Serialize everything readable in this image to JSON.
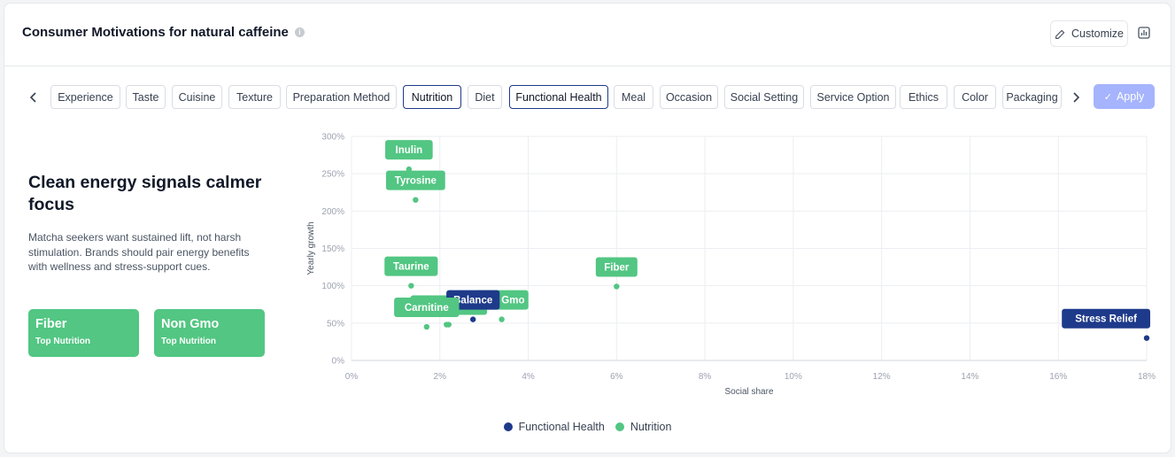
{
  "header": {
    "title": "Consumer Motivations for natural caffeine",
    "customize_label": "Customize"
  },
  "filters": {
    "chips": [
      "Experience",
      "Taste",
      "Cuisine",
      "Texture",
      "Preparation Method",
      "Nutrition",
      "Diet",
      "Functional Health",
      "Meal",
      "Occasion",
      "Social Setting",
      "Service Option",
      "Ethics",
      "Color",
      "Packaging"
    ],
    "active": [
      "Nutrition",
      "Functional Health"
    ],
    "apply_label": "Apply"
  },
  "insight": {
    "headline": "Clean energy signals calmer focus",
    "description": "Matcha seekers want sustained lift, not harsh stimulation. Brands should pair energy benefits with wellness and stress-support cues.",
    "stats": [
      {
        "value": "Fiber",
        "label": "Top Nutrition"
      },
      {
        "value": "Non Gmo",
        "label": "Top Nutrition"
      }
    ]
  },
  "colors": {
    "functional_health": "#1e3a8a",
    "nutrition": "#52c682",
    "apply": "#a5b4fc"
  },
  "chart_data": {
    "type": "scatter",
    "xlabel": "Social share",
    "ylabel": "Yearly growth",
    "xlim": [
      0,
      18
    ],
    "ylim": [
      0,
      300
    ],
    "x_ticks": [
      0,
      2,
      4,
      6,
      8,
      10,
      12,
      14,
      16,
      18
    ],
    "y_ticks": [
      0,
      50,
      100,
      150,
      200,
      250,
      300
    ],
    "x_tick_labels": [
      "0%",
      "2%",
      "4%",
      "6%",
      "8%",
      "10%",
      "12%",
      "14%",
      "16%",
      "18%"
    ],
    "y_tick_labels": [
      "0%",
      "50%",
      "100%",
      "150%",
      "200%",
      "250%",
      "300%"
    ],
    "grid": true,
    "legend": "bottom-center",
    "series": [
      {
        "name": "Functional Health",
        "color": "#1e3a8a",
        "points": [
          {
            "label": "Balance",
            "x": 2.75,
            "y": 55
          },
          {
            "label": "Stress Relief",
            "x": 18.0,
            "y": 30
          }
        ]
      },
      {
        "name": "Nutrition",
        "color": "#52c682",
        "points": [
          {
            "label": "Inulin",
            "x": 1.3,
            "y": 256
          },
          {
            "label": "Tyrosine",
            "x": 1.45,
            "y": 215
          },
          {
            "label": "Taurine",
            "x": 1.35,
            "y": 100
          },
          {
            "label": "Fiber",
            "x": 6.0,
            "y": 99
          },
          {
            "label": "Healthy Fat",
            "x": 2.2,
            "y": 48
          },
          {
            "label": "Carnitine",
            "x": 1.7,
            "y": 45
          },
          {
            "label": "Magnesium",
            "x": 2.15,
            "y": 48
          },
          {
            "label": "Non Gmo",
            "x": 3.4,
            "y": 55
          }
        ]
      }
    ]
  }
}
